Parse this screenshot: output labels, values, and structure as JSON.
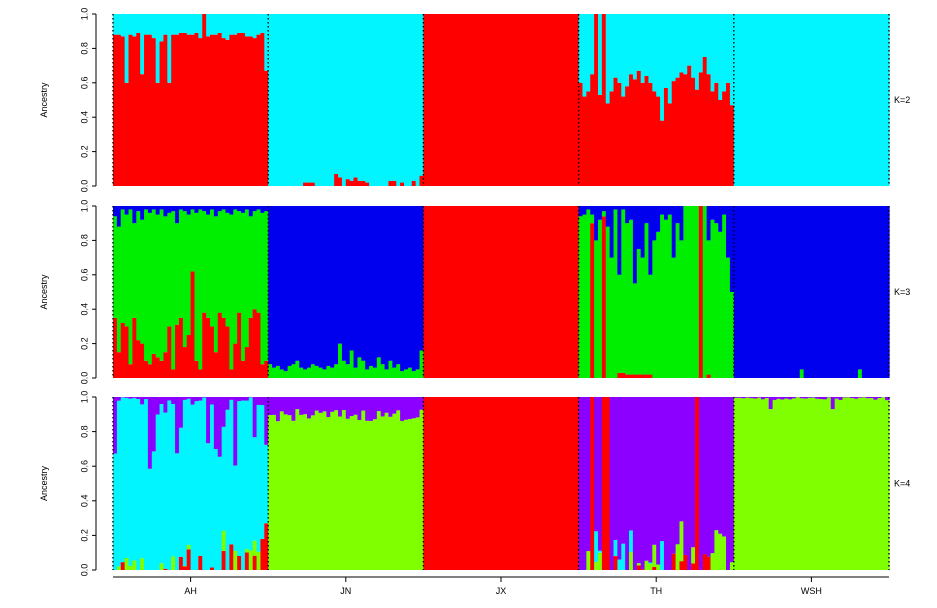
{
  "chart_data": {
    "type": "bar",
    "stacked": true,
    "ylabel": "Ancestry",
    "ylim": [
      0,
      1
    ],
    "yticks": [
      "0.0",
      "0.2",
      "0.4",
      "0.6",
      "0.8",
      "1.0"
    ],
    "populations": [
      {
        "label": "AH",
        "count": 40
      },
      {
        "label": "JN",
        "count": 40
      },
      {
        "label": "JX",
        "count": 40
      },
      {
        "label": "TH",
        "count": 40
      },
      {
        "label": "WSH",
        "count": 40
      }
    ],
    "colors": {
      "red": "#ff0000",
      "cyan": "#00f5ff",
      "green": "#00ee00",
      "blue": "#0000ee",
      "purple": "#8b00ff",
      "lime": "#7fff00"
    },
    "panels": [
      {
        "label": "K=2",
        "series": [
          "red",
          "cyan"
        ],
        "groups": [
          {
            "base": [
              0.88,
              0.88,
              0.87,
              0.6,
              0.88,
              0.87,
              0.89,
              0.65,
              0.88,
              0.88,
              0.86,
              0.6,
              0.84,
              0.88,
              0.6,
              0.88,
              0.88,
              0.89,
              0.89,
              0.88,
              0.88,
              0.89,
              0.86,
              1.0,
              0.87,
              0.88,
              0.88,
              0.89,
              0.86,
              0.85,
              0.88,
              0.88,
              0.89,
              0.89,
              0.87,
              0.87,
              0.86,
              0.88,
              0.89,
              0.67
            ],
            "mods": []
          },
          {
            "base": [
              0.0,
              0.0,
              0.0,
              0.0,
              0.0,
              0.0,
              0.0,
              0.0,
              0.0,
              0.02,
              0.02,
              0.02,
              0.0,
              0.0,
              0.0,
              0.0,
              0.0,
              0.07,
              0.05,
              0.0,
              0.04,
              0.03,
              0.05,
              0.03,
              0.03,
              0.02,
              0.0,
              0.0,
              0.0,
              0.0,
              0.0,
              0.03,
              0.03,
              0.0,
              0.02,
              0.0,
              0.0,
              0.03,
              0.0,
              0.06
            ],
            "mods": []
          },
          {
            "base": [
              1,
              1,
              1,
              1,
              1,
              1,
              1,
              1,
              1,
              1,
              1,
              1,
              1,
              1,
              1,
              1,
              1,
              1,
              1,
              1,
              1,
              1,
              1,
              1,
              1,
              1,
              1,
              1,
              1,
              1,
              1,
              1,
              1,
              1,
              1,
              1,
              1,
              1,
              1,
              1
            ],
            "mods": []
          },
          {
            "base": [
              0.6,
              0.52,
              0.55,
              0.65,
              1.0,
              0.53,
              1.0,
              0.48,
              0.55,
              0.63,
              0.6,
              0.52,
              0.58,
              0.65,
              0.62,
              0.67,
              0.6,
              0.64,
              0.6,
              0.55,
              0.52,
              0.38,
              0.57,
              0.48,
              0.61,
              0.63,
              0.66,
              0.65,
              0.7,
              0.63,
              0.56,
              0.66,
              0.75,
              0.65,
              0.55,
              0.6,
              0.5,
              0.55,
              0.6,
              0.47
            ],
            "mods": []
          },
          {
            "base": [
              0,
              0,
              0,
              0,
              0,
              0,
              0,
              0,
              0,
              0,
              0,
              0,
              0,
              0,
              0,
              0,
              0,
              0,
              0,
              0,
              0,
              0,
              0,
              0,
              0,
              0,
              0,
              0,
              0,
              0,
              0,
              0,
              0,
              0,
              0,
              0,
              0,
              0,
              0,
              0
            ],
            "mods": []
          }
        ]
      },
      {
        "label": "K=3",
        "series": [
          "red",
          "green",
          "blue"
        ],
        "groups": [
          {
            "base": [
              0.35,
              0.15,
              0.32,
              0.3,
              0.08,
              0.35,
              0.22,
              0.2,
              0.1,
              0.08,
              0.14,
              0.12,
              0.1,
              0.15,
              0.3,
              0.05,
              0.31,
              0.35,
              0.18,
              0.25,
              0.62,
              0.1,
              0.05,
              0.38,
              0.35,
              0.3,
              0.15,
              0.38,
              0.35,
              0.3,
              0.05,
              0.2,
              0.38,
              0.1,
              0.18,
              0.35,
              0.4,
              0.38,
              0.08,
              0.1
            ],
            "mid": "green",
            "top": "blue",
            "topFrac": [
              0.06,
              0.12,
              0.02,
              0.05,
              0.02,
              0.1,
              0.03,
              0.08,
              0.02,
              0.04,
              0.02,
              0.05,
              0.02,
              0.06,
              0.04,
              0.03,
              0.1,
              0.02,
              0.03,
              0.05,
              0.02,
              0.04,
              0.02,
              0.03,
              0.05,
              0.02,
              0.06,
              0.03,
              0.02,
              0.04,
              0.05,
              0.02,
              0.03,
              0.04,
              0.02,
              0.06,
              0.03,
              0.02,
              0.04,
              0.03
            ]
          },
          {
            "base": [
              0.0,
              0.0,
              0.0,
              0.0,
              0.0,
              0.0,
              0.0,
              0.0,
              0.0,
              0.0,
              0.0,
              0.0,
              0.0,
              0.0,
              0.0,
              0.0,
              0.0,
              0.0,
              0.0,
              0.0,
              0.0,
              0.0,
              0.0,
              0.0,
              0.0,
              0.0,
              0.0,
              0.0,
              0.0,
              0.0,
              0.0,
              0.0,
              0.0,
              0.0,
              0.0,
              0.0,
              0.0,
              0.0,
              0.0,
              0.0
            ],
            "mid": "green",
            "midFrac": [
              0.08,
              0.06,
              0.07,
              0.05,
              0.04,
              0.07,
              0.08,
              0.1,
              0.06,
              0.05,
              0.06,
              0.08,
              0.07,
              0.06,
              0.05,
              0.07,
              0.06,
              0.08,
              0.2,
              0.1,
              0.08,
              0.16,
              0.06,
              0.12,
              0.1,
              0.05,
              0.07,
              0.06,
              0.12,
              0.08,
              0.05,
              0.1,
              0.06,
              0.08,
              0.04,
              0.05,
              0.06,
              0.04,
              0.05,
              0.16
            ],
            "top": "blue"
          },
          {
            "base": [
              1,
              1,
              1,
              1,
              1,
              1,
              1,
              1,
              1,
              1,
              1,
              1,
              1,
              1,
              1,
              1,
              1,
              1,
              1,
              1,
              1,
              1,
              1,
              1,
              1,
              1,
              1,
              1,
              1,
              1,
              1,
              1,
              1,
              1,
              1,
              1,
              1,
              1,
              1,
              1
            ],
            "mid": "green",
            "top": "blue"
          },
          {
            "base": [
              0.0,
              0.0,
              0.0,
              0.9,
              0.0,
              0.0,
              0.94,
              0.0,
              0.0,
              0.0,
              0.03,
              0.03,
              0.02,
              0.02,
              0.02,
              0.02,
              0.02,
              0.02,
              0.02,
              0.0,
              0.0,
              0.0,
              0.0,
              0.0,
              0.0,
              0.0,
              0.0,
              0.0,
              0.0,
              0.0,
              0.0,
              1.0,
              0.0,
              0.02,
              0.0,
              0.0,
              0.0,
              0.0,
              0.0,
              0.0
            ],
            "mid": "green",
            "top": "blue",
            "topFrac": [
              0.06,
              0.05,
              0.02,
              0.05,
              0.2,
              0.08,
              0.03,
              0.12,
              0.3,
              0.02,
              0.4,
              0.02,
              0.1,
              0.08,
              0.45,
              0.25,
              0.3,
              0.1,
              0.4,
              0.2,
              0.15,
              0.05,
              0.08,
              0.05,
              0.3,
              0.1,
              0.2,
              0.15,
              0.0,
              0.05,
              0.0,
              0.0,
              0.05,
              0.2,
              0.08,
              0.1,
              0.15,
              0.05,
              0.3,
              0.5
            ]
          },
          {
            "base": [
              0,
              0,
              0,
              0,
              0,
              0,
              0,
              0,
              0,
              0,
              0,
              0,
              0,
              0,
              0,
              0,
              0,
              0,
              0,
              0,
              0,
              0,
              0,
              0,
              0,
              0,
              0,
              0,
              0,
              0,
              0,
              0,
              0,
              0,
              0,
              0,
              0,
              0,
              0,
              0
            ],
            "mid": "green",
            "midFrac": [
              0,
              0,
              0,
              0,
              0,
              0,
              0,
              0,
              0,
              0,
              0,
              0,
              0,
              0,
              0,
              0,
              0,
              0.05,
              0,
              0,
              0,
              0,
              0,
              0,
              0,
              0,
              0,
              0,
              0,
              0,
              0,
              0,
              0.05,
              0,
              0,
              0,
              0,
              0,
              0,
              0
            ],
            "top": "blue"
          }
        ]
      },
      {
        "label": "K=4",
        "series": [
          "red",
          "lime",
          "cyan",
          "purple"
        ]
      }
    ]
  }
}
